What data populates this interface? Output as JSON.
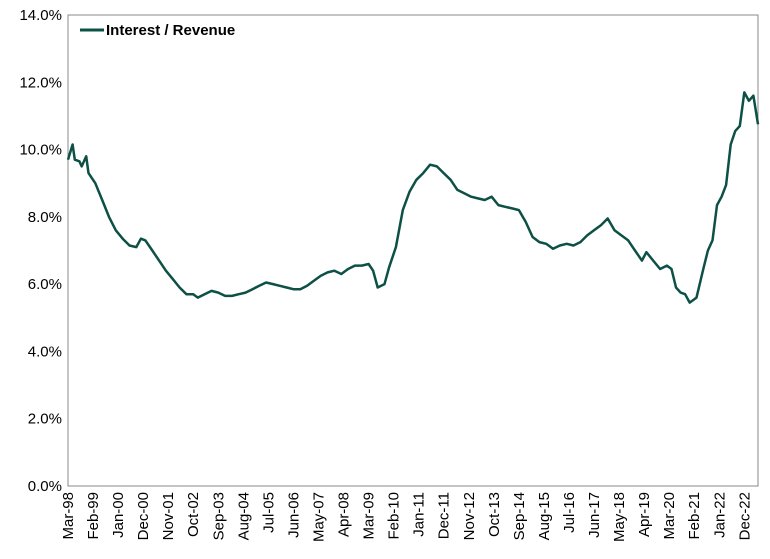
{
  "chart_data": {
    "type": "line",
    "title": "",
    "xlabel": "",
    "ylabel": "",
    "ylim": [
      0,
      14
    ],
    "y_ticks": [
      "0.0%",
      "2.0%",
      "4.0%",
      "6.0%",
      "8.0%",
      "10.0%",
      "12.0%",
      "14.0%"
    ],
    "y_tick_values": [
      0,
      2,
      4,
      6,
      8,
      10,
      12,
      14
    ],
    "x_ticks": [
      "Mar-98",
      "Feb-99",
      "Jan-00",
      "Dec-00",
      "Nov-01",
      "Oct-02",
      "Sep-03",
      "Aug-04",
      "Jul-05",
      "Jun-06",
      "May-07",
      "Apr-08",
      "Mar-09",
      "Feb-10",
      "Jan-11",
      "Dec-11",
      "Nov-12",
      "Oct-13",
      "Sep-14",
      "Aug-15",
      "Jul-16",
      "Jun-17",
      "May-18",
      "Apr-19",
      "Mar-20",
      "Feb-21",
      "Jan-22",
      "Dec-22"
    ],
    "x_start": "Mar-98",
    "x_end": "Jun-23",
    "grid": false,
    "legend": "top-left",
    "series": [
      {
        "name": "Interest / Revenue",
        "color": "#0d5045",
        "points": [
          [
            "1998-03",
            9.7
          ],
          [
            "1998-05",
            10.15
          ],
          [
            "1998-06",
            9.7
          ],
          [
            "1998-08",
            9.65
          ],
          [
            "1998-09",
            9.5
          ],
          [
            "1998-11",
            9.8
          ],
          [
            "1998-12",
            9.3
          ],
          [
            "1999-03",
            9.0
          ],
          [
            "1999-06",
            8.5
          ],
          [
            "1999-09",
            8.0
          ],
          [
            "1999-12",
            7.6
          ],
          [
            "2000-03",
            7.35
          ],
          [
            "2000-06",
            7.15
          ],
          [
            "2000-09",
            7.1
          ],
          [
            "2000-11",
            7.35
          ],
          [
            "2001-01",
            7.3
          ],
          [
            "2001-04",
            7.0
          ],
          [
            "2001-07",
            6.7
          ],
          [
            "2001-10",
            6.4
          ],
          [
            "2002-01",
            6.15
          ],
          [
            "2002-04",
            5.9
          ],
          [
            "2002-07",
            5.7
          ],
          [
            "2002-10",
            5.7
          ],
          [
            "2002-12",
            5.6
          ],
          [
            "2003-03",
            5.7
          ],
          [
            "2003-06",
            5.8
          ],
          [
            "2003-09",
            5.75
          ],
          [
            "2003-12",
            5.65
          ],
          [
            "2004-03",
            5.65
          ],
          [
            "2004-06",
            5.7
          ],
          [
            "2004-09",
            5.75
          ],
          [
            "2004-12",
            5.85
          ],
          [
            "2005-03",
            5.95
          ],
          [
            "2005-06",
            6.05
          ],
          [
            "2005-09",
            6.0
          ],
          [
            "2005-12",
            5.95
          ],
          [
            "2006-03",
            5.9
          ],
          [
            "2006-06",
            5.85
          ],
          [
            "2006-09",
            5.85
          ],
          [
            "2006-12",
            5.95
          ],
          [
            "2007-03",
            6.1
          ],
          [
            "2007-06",
            6.25
          ],
          [
            "2007-09",
            6.35
          ],
          [
            "2007-12",
            6.4
          ],
          [
            "2008-03",
            6.3
          ],
          [
            "2008-06",
            6.45
          ],
          [
            "2008-09",
            6.55
          ],
          [
            "2008-12",
            6.55
          ],
          [
            "2009-03",
            6.6
          ],
          [
            "2009-05",
            6.4
          ],
          [
            "2009-07",
            5.9
          ],
          [
            "2009-10",
            6.0
          ],
          [
            "2009-12",
            6.5
          ],
          [
            "2010-03",
            7.1
          ],
          [
            "2010-06",
            8.2
          ],
          [
            "2010-09",
            8.75
          ],
          [
            "2010-12",
            9.1
          ],
          [
            "2011-03",
            9.3
          ],
          [
            "2011-06",
            9.55
          ],
          [
            "2011-09",
            9.5
          ],
          [
            "2011-12",
            9.3
          ],
          [
            "2012-03",
            9.1
          ],
          [
            "2012-06",
            8.8
          ],
          [
            "2012-09",
            8.7
          ],
          [
            "2012-12",
            8.6
          ],
          [
            "2013-03",
            8.55
          ],
          [
            "2013-06",
            8.5
          ],
          [
            "2013-09",
            8.6
          ],
          [
            "2013-12",
            8.35
          ],
          [
            "2014-03",
            8.3
          ],
          [
            "2014-06",
            8.25
          ],
          [
            "2014-09",
            8.2
          ],
          [
            "2014-12",
            7.85
          ],
          [
            "2015-03",
            7.4
          ],
          [
            "2015-06",
            7.25
          ],
          [
            "2015-09",
            7.2
          ],
          [
            "2015-12",
            7.05
          ],
          [
            "2016-03",
            7.15
          ],
          [
            "2016-06",
            7.2
          ],
          [
            "2016-09",
            7.15
          ],
          [
            "2016-12",
            7.25
          ],
          [
            "2017-03",
            7.45
          ],
          [
            "2017-06",
            7.6
          ],
          [
            "2017-09",
            7.75
          ],
          [
            "2017-12",
            7.95
          ],
          [
            "2018-03",
            7.6
          ],
          [
            "2018-06",
            7.45
          ],
          [
            "2018-09",
            7.3
          ],
          [
            "2018-12",
            7.0
          ],
          [
            "2019-03",
            6.7
          ],
          [
            "2019-05",
            6.95
          ],
          [
            "2019-08",
            6.7
          ],
          [
            "2019-11",
            6.45
          ],
          [
            "2020-02",
            6.55
          ],
          [
            "2020-04",
            6.45
          ],
          [
            "2020-06",
            5.9
          ],
          [
            "2020-08",
            5.75
          ],
          [
            "2020-10",
            5.7
          ],
          [
            "2020-12",
            5.45
          ],
          [
            "2021-03",
            5.6
          ],
          [
            "2021-06",
            6.45
          ],
          [
            "2021-08",
            7.0
          ],
          [
            "2021-10",
            7.3
          ],
          [
            "2021-12",
            8.35
          ],
          [
            "2022-02",
            8.6
          ],
          [
            "2022-04",
            8.95
          ],
          [
            "2022-06",
            10.15
          ],
          [
            "2022-08",
            10.55
          ],
          [
            "2022-10",
            10.7
          ],
          [
            "2022-12",
            11.7
          ],
          [
            "2023-02",
            11.45
          ],
          [
            "2023-04",
            11.6
          ],
          [
            "2023-06",
            10.75
          ]
        ]
      }
    ]
  }
}
